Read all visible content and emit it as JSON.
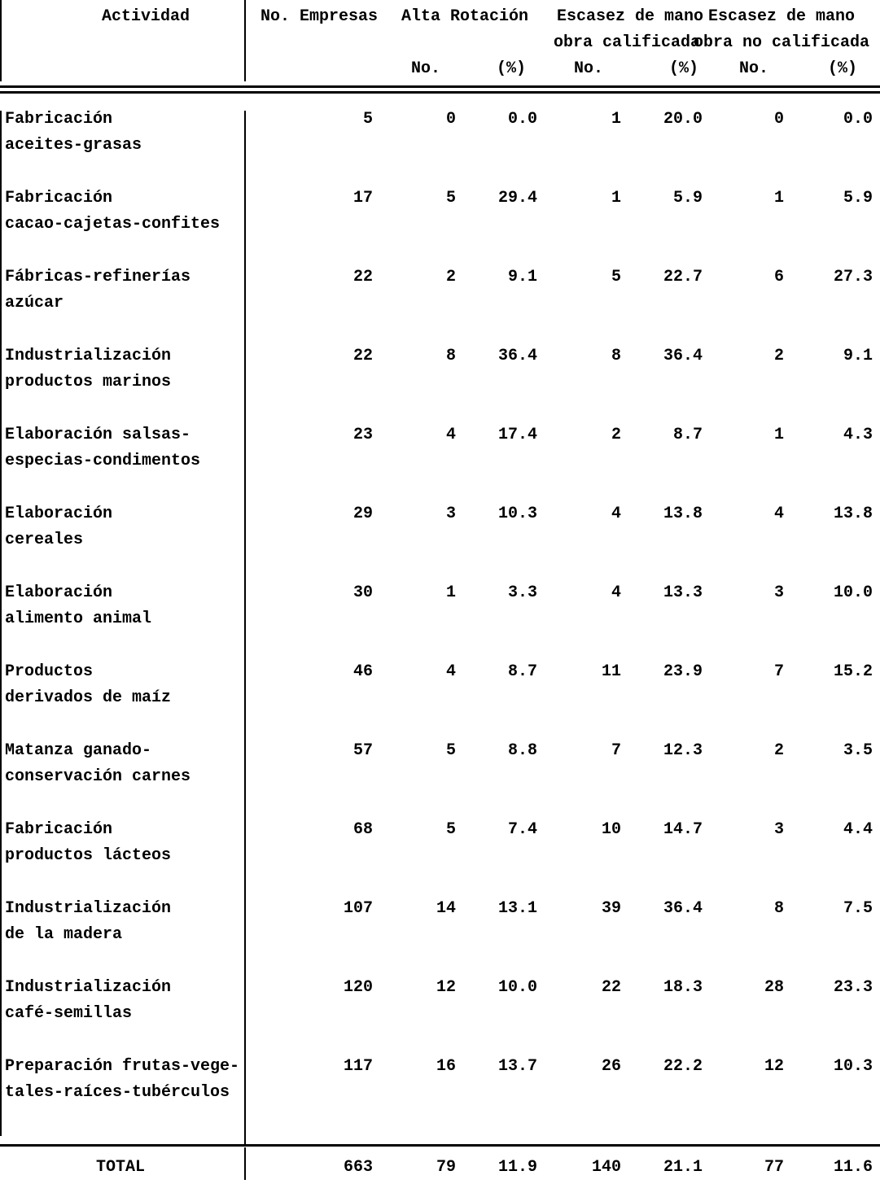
{
  "header": {
    "actividad": "Actividad",
    "empresas": "No. Empresas",
    "alta_rotacion": "Alta Rotación",
    "escasez_calificada_1": "Escasez de mano",
    "escasez_calificada_2": "obra calificada",
    "escasez_no_calificada_1": "Escasez  de mano",
    "escasez_no_calificada_2": "obra no calificada",
    "sub_no": "No.",
    "sub_pct": "(%)"
  },
  "rows": [
    {
      "line1": "Fabricación",
      "line2": "aceites-grasas",
      "values": [
        "5",
        "0",
        "0.0",
        "1",
        "20.0",
        "0",
        "0.0"
      ]
    },
    {
      "line1": "Fabricación",
      "line2": "cacao-cajetas-confites",
      "values": [
        "17",
        "5",
        "29.4",
        "1",
        "5.9",
        "1",
        "5.9"
      ]
    },
    {
      "line1": "Fábricas-refinerías",
      "line2": "azúcar",
      "values": [
        "22",
        "2",
        "9.1",
        "5",
        "22.7",
        "6",
        "27.3"
      ]
    },
    {
      "line1": "Industrialización",
      "line2": "productos marinos",
      "values": [
        "22",
        "8",
        "36.4",
        "8",
        "36.4",
        "2",
        "9.1"
      ]
    },
    {
      "line1": "Elaboración salsas-",
      "line2": "especias-condimentos",
      "values": [
        "23",
        "4",
        "17.4",
        "2",
        "8.7",
        "1",
        "4.3"
      ]
    },
    {
      "line1": "Elaboración",
      "line2": "cereales",
      "values": [
        "29",
        "3",
        "10.3",
        "4",
        "13.8",
        "4",
        "13.8"
      ]
    },
    {
      "line1": "Elaboración",
      "line2": "alimento animal",
      "values": [
        "30",
        "1",
        "3.3",
        "4",
        "13.3",
        "3",
        "10.0"
      ]
    },
    {
      "line1": "Productos",
      "line2": "derivados de maíz",
      "values": [
        "46",
        "4",
        "8.7",
        "11",
        "23.9",
        "7",
        "15.2"
      ]
    },
    {
      "line1": "Matanza ganado-",
      "line2": "conservación carnes",
      "values": [
        "57",
        "5",
        "8.8",
        "7",
        "12.3",
        "2",
        "3.5"
      ]
    },
    {
      "line1": "Fabricación",
      "line2": "productos lácteos",
      "values": [
        "68",
        "5",
        "7.4",
        "10",
        "14.7",
        "3",
        "4.4"
      ]
    },
    {
      "line1": "Industrialización",
      "line2": "de la madera",
      "values": [
        "107",
        "14",
        "13.1",
        "39",
        "36.4",
        "8",
        "7.5"
      ]
    },
    {
      "line1": "Industrialización",
      "line2": "café-semillas",
      "values": [
        "120",
        "12",
        "10.0",
        "22",
        "18.3",
        "28",
        "23.3"
      ]
    },
    {
      "line1": "Preparación frutas-vege-",
      "line2": "tales-raíces-tubérculos",
      "values": [
        "117",
        "16",
        "13.7",
        "26",
        "22.2",
        "12",
        "10.3"
      ]
    }
  ],
  "total": {
    "label": "TOTAL",
    "values": [
      "663",
      "79",
      "11.9",
      "140",
      "21.1",
      "77",
      "11.6"
    ]
  }
}
